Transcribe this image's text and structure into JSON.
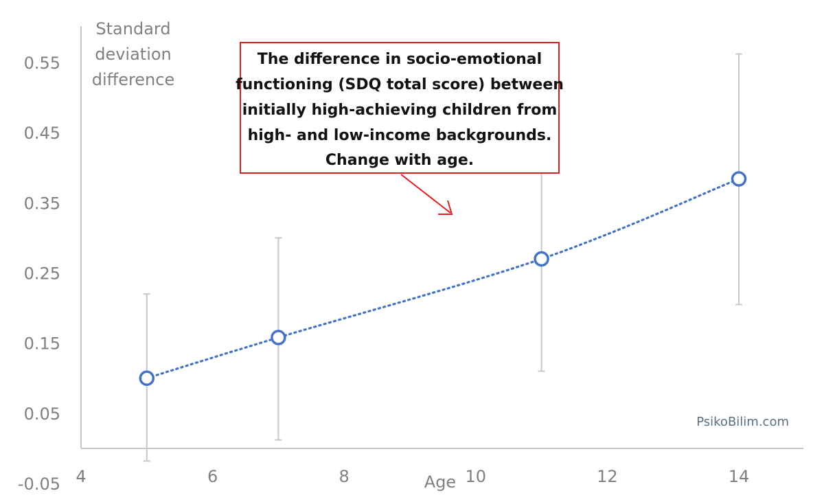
{
  "chart_data": {
    "type": "scatter",
    "xlabel": "Age",
    "ylabel_lines": [
      "Standard",
      "deviation",
      "difference"
    ],
    "xlim": [
      4,
      15
    ],
    "ylim": [
      -0.05,
      0.6
    ],
    "x_ticks": [
      4,
      6,
      8,
      10,
      12,
      14
    ],
    "y_ticks": [
      -0.05,
      0.05,
      0.15,
      0.25,
      0.35,
      0.45,
      0.55
    ],
    "y_tick_labels": [
      "-0.05",
      "0.05",
      "0.15",
      "0.25",
      "0.35",
      "0.45",
      "0.55"
    ],
    "grid": false,
    "series": [
      {
        "x": [
          5,
          7,
          11,
          14
        ],
        "y": [
          0.1,
          0.158,
          0.27,
          0.384
        ],
        "error_low": [
          -0.018,
          0.012,
          0.11,
          0.205
        ],
        "error_high": [
          0.22,
          0.3,
          0.4,
          0.562
        ],
        "marker": "open-circle",
        "color": "#4472c4",
        "trendline": "dotted"
      }
    ],
    "annotation": {
      "lines": [
        "The difference in socio-emotional",
        "functioning (SDQ total score) between",
        "initially high-achieving children from",
        "high- and low-income backgrounds.",
        "Change with age."
      ],
      "border_color": "#d62020"
    },
    "watermark": "PsikoBilim.com"
  }
}
